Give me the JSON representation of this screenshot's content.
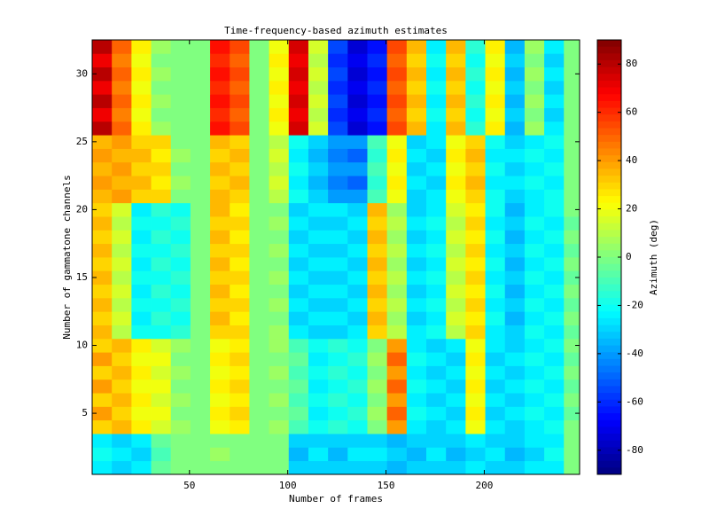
{
  "chart_data": {
    "type": "heatmap",
    "title": "Time-frequency-based azimuth estimates",
    "xlabel": "Number of frames",
    "ylabel": "Number of gammatone channels",
    "colorbar_label": "Azimuth (deg)",
    "colormap": "jet",
    "xlim": [
      0.5,
      248.5
    ],
    "xticks": [
      50,
      100,
      150,
      200
    ],
    "ylim": [
      0.5,
      32.5
    ],
    "yticks": [
      5,
      10,
      15,
      20,
      25,
      30
    ],
    "clim": [
      -90,
      90
    ],
    "cticks": [
      -80,
      -60,
      -40,
      -20,
      0,
      20,
      40,
      60,
      80
    ],
    "x_edges": [
      0.5,
      10.5,
      20.5,
      30.5,
      40.5,
      50.5,
      60.5,
      70.5,
      80.5,
      90.5,
      100.5,
      110.5,
      120.5,
      130.5,
      140.5,
      150.5,
      160.5,
      170.5,
      180.5,
      190.5,
      200.5,
      210.5,
      220.5,
      230.5,
      240.5,
      248.5
    ],
    "y": [
      1,
      2,
      3,
      4,
      5,
      6,
      7,
      8,
      9,
      10,
      11,
      12,
      13,
      14,
      15,
      16,
      17,
      18,
      19,
      20,
      21,
      22,
      23,
      24,
      25,
      26,
      27,
      28,
      29,
      30,
      31,
      32
    ],
    "z": [
      [
        -25,
        -30,
        -25,
        -5,
        0,
        0,
        0,
        0,
        0,
        0,
        -30,
        -30,
        -30,
        -30,
        -30,
        -35,
        -30,
        -30,
        -30,
        -25,
        -30,
        -30,
        -25,
        -25,
        0
      ],
      [
        -20,
        -25,
        -30,
        -10,
        0,
        0,
        5,
        0,
        0,
        0,
        -35,
        -25,
        -35,
        -25,
        -25,
        -30,
        -35,
        -25,
        -35,
        -30,
        -25,
        -35,
        -30,
        -20,
        0
      ],
      [
        -25,
        -30,
        -25,
        -5,
        0,
        0,
        0,
        0,
        0,
        0,
        -30,
        -30,
        -30,
        -30,
        -30,
        -35,
        -30,
        -30,
        -30,
        -25,
        -30,
        -30,
        -25,
        -25,
        0
      ],
      [
        30,
        35,
        25,
        15,
        5,
        0,
        20,
        25,
        0,
        5,
        -10,
        -20,
        -15,
        -20,
        0,
        40,
        -25,
        -30,
        -25,
        20,
        -25,
        -30,
        -25,
        -20,
        0
      ],
      [
        40,
        30,
        20,
        20,
        0,
        0,
        25,
        30,
        0,
        0,
        -5,
        -25,
        -20,
        -15,
        5,
        50,
        -20,
        -25,
        -30,
        25,
        -30,
        -25,
        -20,
        -25,
        -5
      ],
      [
        30,
        35,
        25,
        15,
        5,
        0,
        20,
        25,
        0,
        5,
        -10,
        -20,
        -15,
        -20,
        0,
        40,
        -25,
        -30,
        -25,
        20,
        -25,
        -30,
        -25,
        -20,
        0
      ],
      [
        40,
        30,
        20,
        20,
        0,
        0,
        25,
        30,
        0,
        0,
        -5,
        -25,
        -20,
        -15,
        5,
        50,
        -20,
        -25,
        -30,
        25,
        -30,
        -25,
        -20,
        -25,
        -5
      ],
      [
        30,
        35,
        25,
        15,
        5,
        0,
        20,
        25,
        0,
        5,
        -10,
        -20,
        -15,
        -20,
        0,
        40,
        -25,
        -30,
        -25,
        20,
        -25,
        -30,
        -25,
        -20,
        0
      ],
      [
        40,
        30,
        20,
        20,
        0,
        0,
        25,
        30,
        0,
        0,
        -5,
        -25,
        -20,
        -15,
        5,
        50,
        -20,
        -25,
        -30,
        25,
        -30,
        -25,
        -20,
        -25,
        -5
      ],
      [
        30,
        35,
        25,
        15,
        5,
        0,
        20,
        25,
        0,
        5,
        -10,
        -20,
        -15,
        -20,
        0,
        40,
        -25,
        -30,
        -25,
        20,
        -25,
        -30,
        -25,
        -20,
        0
      ],
      [
        35,
        10,
        -20,
        -20,
        -15,
        0,
        30,
        30,
        0,
        5,
        -25,
        -30,
        -30,
        -25,
        30,
        10,
        -25,
        -20,
        10,
        30,
        -25,
        -30,
        -20,
        -25,
        -5
      ],
      [
        30,
        15,
        -25,
        -15,
        -20,
        0,
        35,
        25,
        0,
        0,
        -30,
        -25,
        -25,
        -30,
        35,
        5,
        -30,
        -25,
        15,
        25,
        -20,
        -35,
        -25,
        -20,
        0
      ],
      [
        35,
        10,
        -20,
        -20,
        -15,
        0,
        30,
        30,
        0,
        5,
        -25,
        -30,
        -30,
        -25,
        30,
        10,
        -25,
        -20,
        10,
        30,
        -25,
        -30,
        -20,
        -25,
        -5
      ],
      [
        30,
        15,
        -25,
        -15,
        -20,
        0,
        35,
        25,
        0,
        0,
        -30,
        -25,
        -25,
        -30,
        35,
        5,
        -30,
        -25,
        15,
        25,
        -20,
        -35,
        -25,
        -20,
        0
      ],
      [
        35,
        10,
        -20,
        -20,
        -15,
        0,
        30,
        30,
        0,
        5,
        -25,
        -30,
        -30,
        -25,
        30,
        10,
        -25,
        -20,
        10,
        30,
        -25,
        -30,
        -20,
        -25,
        -5
      ],
      [
        30,
        15,
        -25,
        -15,
        -20,
        0,
        35,
        25,
        0,
        0,
        -30,
        -25,
        -25,
        -30,
        35,
        5,
        -30,
        -25,
        15,
        25,
        -20,
        -35,
        -25,
        -20,
        0
      ],
      [
        35,
        10,
        -20,
        -20,
        -15,
        0,
        30,
        30,
        0,
        5,
        -25,
        -30,
        -30,
        -25,
        30,
        10,
        -25,
        -20,
        10,
        30,
        -25,
        -30,
        -20,
        -25,
        -5
      ],
      [
        30,
        15,
        -25,
        -15,
        -20,
        0,
        35,
        25,
        0,
        0,
        -30,
        -25,
        -25,
        -30,
        35,
        5,
        -30,
        -25,
        15,
        25,
        -20,
        -35,
        -25,
        -20,
        0
      ],
      [
        35,
        10,
        -20,
        -20,
        -15,
        0,
        30,
        30,
        0,
        5,
        -25,
        -30,
        -30,
        -25,
        30,
        10,
        -25,
        -20,
        10,
        30,
        -25,
        -30,
        -20,
        -25,
        -5
      ],
      [
        30,
        15,
        -25,
        -15,
        -20,
        0,
        35,
        25,
        0,
        0,
        -30,
        -25,
        -25,
        -30,
        35,
        5,
        -30,
        -25,
        15,
        25,
        -20,
        -35,
        -25,
        -20,
        0
      ],
      [
        35,
        40,
        30,
        30,
        0,
        0,
        35,
        30,
        0,
        10,
        -20,
        -30,
        -40,
        -40,
        -10,
        20,
        -30,
        -25,
        20,
        30,
        -20,
        -30,
        -25,
        -20,
        0
      ],
      [
        40,
        35,
        35,
        25,
        5,
        0,
        30,
        35,
        0,
        15,
        -25,
        -35,
        -45,
        -50,
        -15,
        25,
        -25,
        -30,
        25,
        35,
        -25,
        -25,
        -20,
        -25,
        0
      ],
      [
        35,
        40,
        30,
        30,
        0,
        0,
        35,
        30,
        0,
        10,
        -20,
        -30,
        -40,
        -40,
        -10,
        20,
        -30,
        -25,
        20,
        30,
        -20,
        -30,
        -25,
        -20,
        0
      ],
      [
        40,
        35,
        35,
        25,
        5,
        0,
        30,
        35,
        0,
        15,
        -25,
        -35,
        -45,
        -50,
        -15,
        25,
        -25,
        -30,
        25,
        35,
        -25,
        -25,
        -20,
        -25,
        0
      ],
      [
        35,
        40,
        30,
        30,
        0,
        0,
        35,
        30,
        0,
        10,
        -20,
        -30,
        -40,
        -40,
        -10,
        20,
        -30,
        -25,
        20,
        30,
        -20,
        -30,
        -25,
        -20,
        0
      ],
      [
        80,
        50,
        25,
        5,
        0,
        0,
        65,
        55,
        0,
        20,
        75,
        15,
        -55,
        -75,
        -65,
        55,
        35,
        -25,
        35,
        -15,
        25,
        -35,
        5,
        -25,
        0
      ],
      [
        70,
        45,
        20,
        0,
        0,
        0,
        60,
        50,
        0,
        25,
        70,
        10,
        -60,
        -70,
        -60,
        50,
        30,
        -20,
        30,
        -20,
        20,
        -30,
        0,
        -30,
        0
      ],
      [
        80,
        50,
        25,
        5,
        0,
        0,
        65,
        55,
        0,
        20,
        75,
        15,
        -55,
        -75,
        -65,
        55,
        35,
        -25,
        35,
        -15,
        25,
        -35,
        5,
        -25,
        0
      ],
      [
        70,
        45,
        20,
        0,
        0,
        0,
        60,
        50,
        0,
        25,
        70,
        10,
        -60,
        -70,
        -60,
        50,
        30,
        -20,
        30,
        -20,
        20,
        -30,
        0,
        -30,
        0
      ],
      [
        80,
        50,
        25,
        5,
        0,
        0,
        65,
        55,
        0,
        20,
        75,
        15,
        -55,
        -75,
        -65,
        55,
        35,
        -25,
        35,
        -15,
        25,
        -35,
        5,
        -25,
        0
      ],
      [
        70,
        45,
        20,
        0,
        0,
        0,
        60,
        50,
        0,
        25,
        70,
        10,
        -60,
        -70,
        -60,
        50,
        30,
        -20,
        30,
        -20,
        20,
        -30,
        0,
        -30,
        0
      ],
      [
        80,
        50,
        25,
        5,
        0,
        0,
        65,
        55,
        0,
        20,
        75,
        15,
        -55,
        -75,
        -65,
        55,
        35,
        -25,
        35,
        -15,
        25,
        -35,
        5,
        -25,
        0
      ]
    ]
  }
}
